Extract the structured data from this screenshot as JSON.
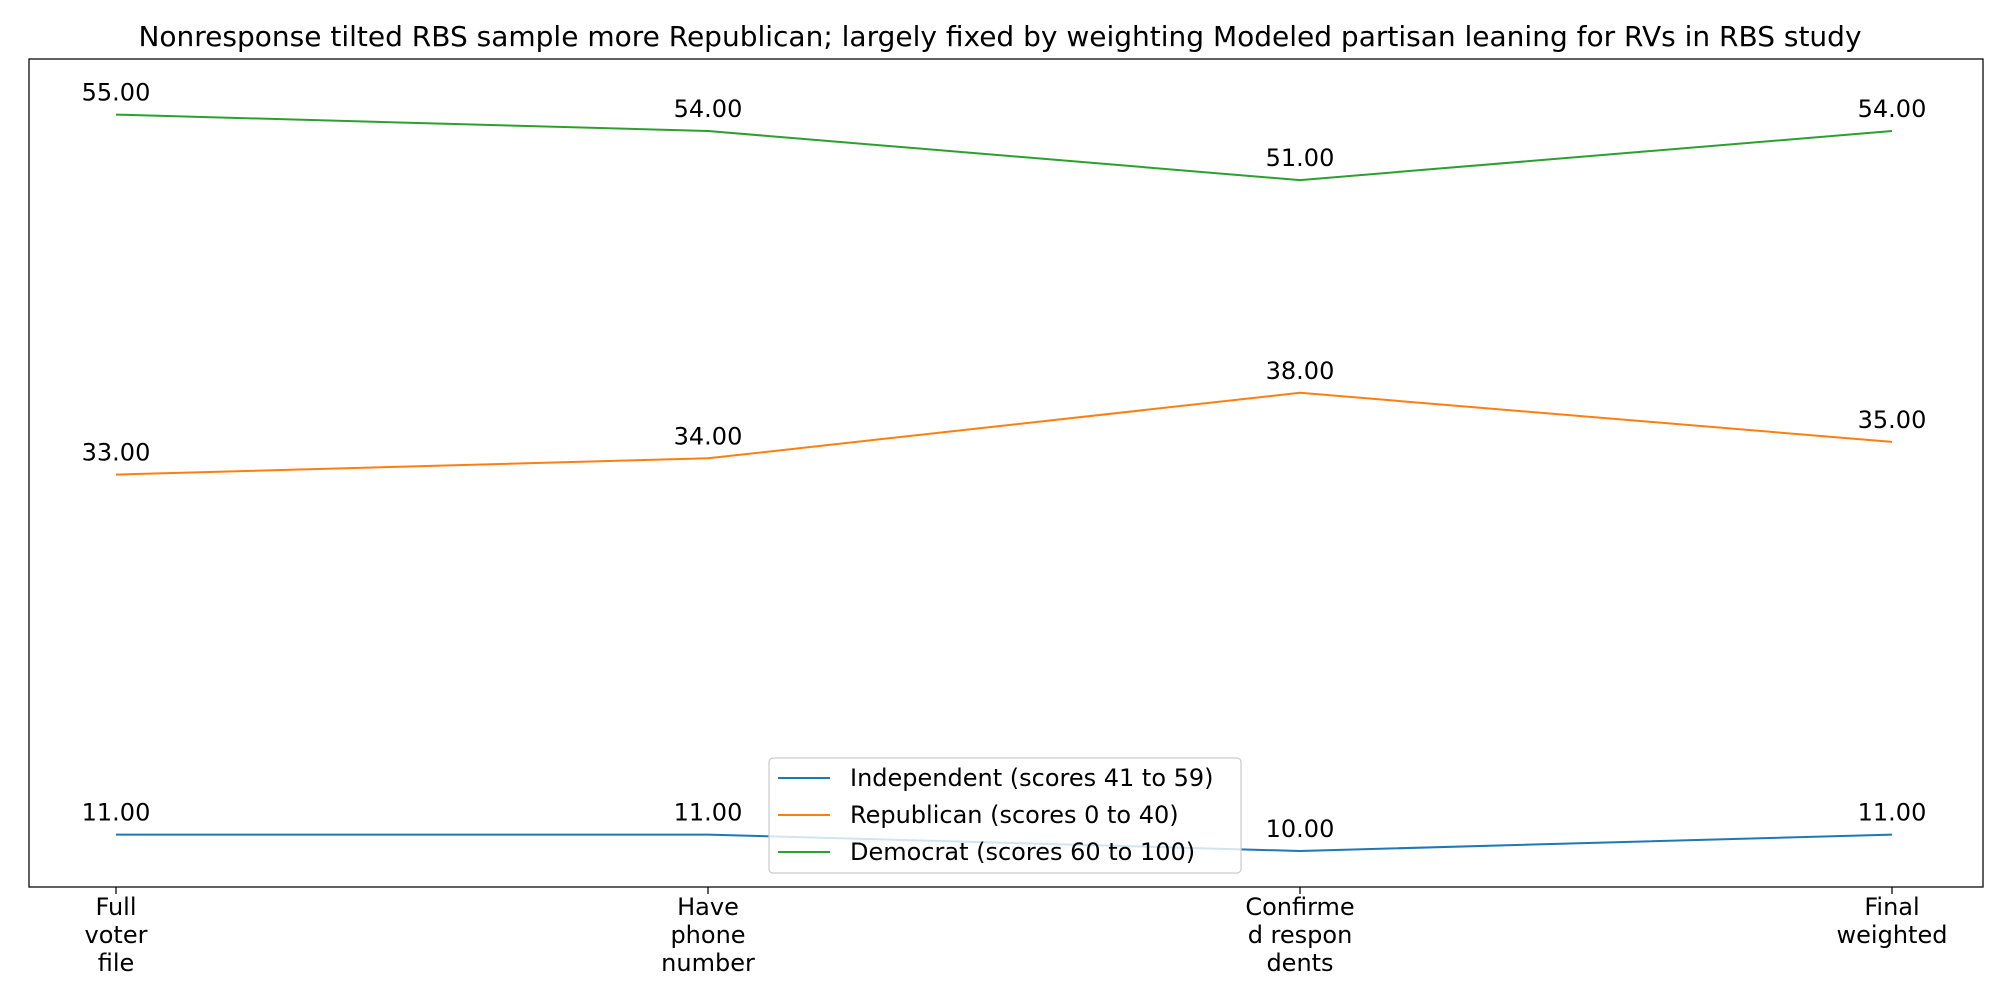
{
  "chart_data": {
    "type": "line",
    "title": "Nonresponse tilted RBS sample more Republican; largely fixed by weighting Modeled partisan leaning for RVs in RBS study",
    "xlabel": "",
    "ylabel": "",
    "categories": [
      [
        "Full",
        "voter",
        "file"
      ],
      [
        "Have",
        "phone",
        "number"
      ],
      [
        "Confirme",
        "d respon",
        "dents"
      ],
      [
        "Final",
        "weighted"
      ]
    ],
    "series": [
      {
        "name": "Independent (scores 41 to 59)",
        "color": "#1f77b4",
        "values": [
          11,
          11,
          10,
          11
        ]
      },
      {
        "name": "Republican (scores 0 to 40)",
        "color": "#ff7f0e",
        "values": [
          33,
          34,
          38,
          35
        ]
      },
      {
        "name": "Democrat (scores 60 to 100)",
        "color": "#2ca02c",
        "values": [
          55,
          54,
          51,
          54
        ]
      }
    ],
    "value_format": "2 decimals",
    "ylim": [
      7.8,
      58.4
    ],
    "grid": false,
    "yaxis_visible": false,
    "legend_placement": "lower center"
  }
}
